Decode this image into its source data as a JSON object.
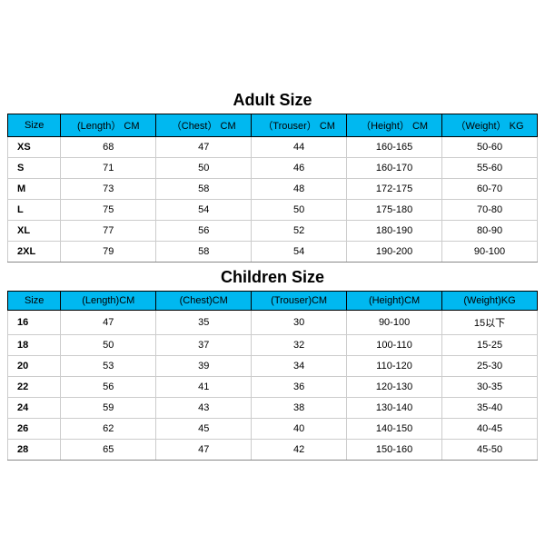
{
  "header_bg": "#00b8f0",
  "adult": {
    "title": "Adult Size",
    "columns": [
      "Size",
      "(Length） CM",
      "（Chest） CM",
      "（Trouser） CM",
      "（Height） CM",
      "（Weight） KG"
    ],
    "rows": [
      [
        "XS",
        "68",
        "47",
        "44",
        "160-165",
        "50-60"
      ],
      [
        "S",
        "71",
        "50",
        "46",
        "160-170",
        "55-60"
      ],
      [
        "M",
        "73",
        "58",
        "48",
        "172-175",
        "60-70"
      ],
      [
        "L",
        "75",
        "54",
        "50",
        "175-180",
        "70-80"
      ],
      [
        "XL",
        "77",
        "56",
        "52",
        "180-190",
        "80-90"
      ],
      [
        "2XL",
        "79",
        "58",
        "54",
        "190-200",
        "90-100"
      ]
    ]
  },
  "children": {
    "title": "Children Size",
    "columns": [
      "Size",
      "(Length)CM",
      "(Chest)CM",
      "(Trouser)CM",
      "(Height)CM",
      "(Weight)KG"
    ],
    "rows": [
      [
        "16",
        "47",
        "35",
        "30",
        "90-100",
        "15以下"
      ],
      [
        "18",
        "50",
        "37",
        "32",
        "100-110",
        "15-25"
      ],
      [
        "20",
        "53",
        "39",
        "34",
        "110-120",
        "25-30"
      ],
      [
        "22",
        "56",
        "41",
        "36",
        "120-130",
        "30-35"
      ],
      [
        "24",
        "59",
        "43",
        "38",
        "130-140",
        "35-40"
      ],
      [
        "26",
        "62",
        "45",
        "40",
        "140-150",
        "40-45"
      ],
      [
        "28",
        "65",
        "47",
        "42",
        "150-160",
        "45-50"
      ]
    ]
  }
}
